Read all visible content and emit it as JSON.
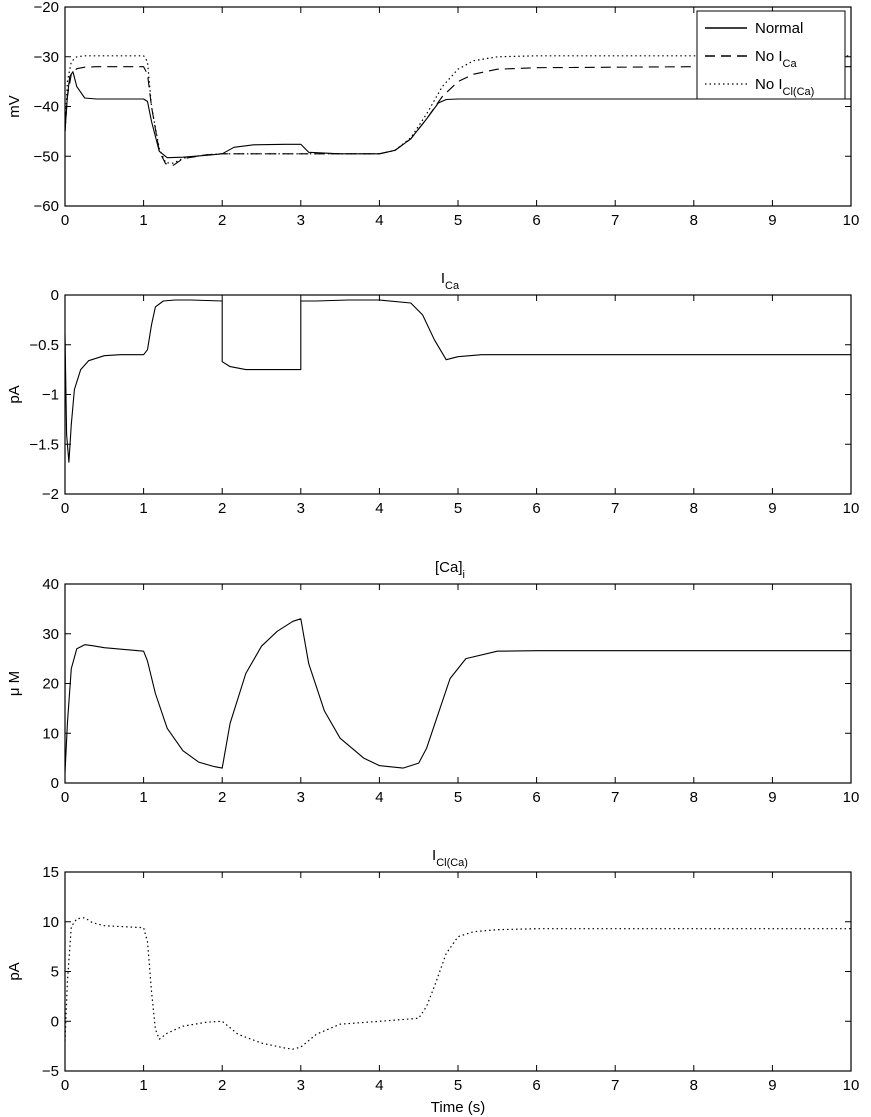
{
  "chart_data": [
    {
      "type": "line",
      "title": "",
      "xlabel": "",
      "ylabel": "mV",
      "xlim": [
        0,
        10
      ],
      "ylim": [
        -60,
        -20
      ],
      "xticks": [
        0,
        1,
        2,
        3,
        4,
        5,
        6,
        7,
        8,
        9,
        10
      ],
      "yticks": [
        -60,
        -50,
        -40,
        -30,
        -20
      ],
      "grid": false,
      "legend_position": "top-right",
      "series": [
        {
          "name": "Normal",
          "style": "solid",
          "x": [
            0,
            0.03,
            0.06,
            0.1,
            0.15,
            0.25,
            0.4,
            1.0,
            1.05,
            1.1,
            1.2,
            1.3,
            1.5,
            1.8,
            2.0,
            2.15,
            2.4,
            2.8,
            3.0,
            3.1,
            3.5,
            4.0,
            4.2,
            4.4,
            4.6,
            4.75,
            4.85,
            5.0,
            6.0,
            7.0,
            8.0,
            9.0,
            10.0
          ],
          "y": [
            -45,
            -38,
            -34,
            -33,
            -36,
            -38.3,
            -38.5,
            -38.5,
            -39,
            -43,
            -49,
            -50.3,
            -50.2,
            -49.8,
            -49.5,
            -48.2,
            -47.7,
            -47.6,
            -47.6,
            -49.2,
            -49.5,
            -49.5,
            -48.8,
            -46.5,
            -42.5,
            -39.3,
            -38.6,
            -38.5,
            -38.5,
            -38.5,
            -38.5,
            -38.5,
            -38.5
          ]
        },
        {
          "name": "No I",
          "name_sub": "Ca",
          "style": "dashed",
          "x": [
            0,
            0.03,
            0.08,
            0.15,
            0.25,
            0.4,
            1.0,
            1.05,
            1.1,
            1.2,
            1.28,
            1.38,
            1.5,
            1.8,
            2.0,
            2.5,
            3.0,
            3.5,
            4.0,
            4.2,
            4.4,
            4.6,
            4.8,
            5.0,
            5.2,
            5.5,
            6.0,
            7.0,
            8.0,
            9.0,
            10.0
          ],
          "y": [
            -45,
            -38,
            -33.5,
            -32.4,
            -32.1,
            -32,
            -32,
            -33.5,
            -40,
            -49,
            -51.5,
            -51.8,
            -50.5,
            -49.7,
            -49.5,
            -49.5,
            -49.5,
            -49.5,
            -49.5,
            -48.8,
            -46.5,
            -42.5,
            -38,
            -35,
            -33.5,
            -32.5,
            -32.2,
            -32.1,
            -32,
            -32,
            -32
          ]
        },
        {
          "name": "No I",
          "name_sub": "Cl(Ca)",
          "style": "dotted",
          "x": [
            0,
            0.03,
            0.08,
            0.15,
            0.25,
            0.4,
            1.0,
            1.05,
            1.1,
            1.2,
            1.28,
            1.38,
            1.5,
            1.8,
            2.0,
            2.5,
            3.0,
            3.5,
            4.0,
            4.2,
            4.4,
            4.6,
            4.8,
            5.0,
            5.2,
            5.5,
            6.0,
            7.0,
            8.0,
            9.0,
            10.0
          ],
          "y": [
            -45,
            -35,
            -31,
            -30,
            -29.8,
            -29.8,
            -29.8,
            -31,
            -40,
            -48.5,
            -51.3,
            -51.4,
            -50.4,
            -49.7,
            -49.5,
            -49.5,
            -49.5,
            -49.5,
            -49.5,
            -48.8,
            -46.3,
            -41.5,
            -36,
            -32.5,
            -30.8,
            -30,
            -29.8,
            -29.8,
            -29.8,
            -29.8,
            -29.8
          ]
        }
      ]
    },
    {
      "type": "line",
      "title": "I",
      "title_sub": "Ca",
      "xlabel": "",
      "ylabel": "pA",
      "xlim": [
        0,
        10
      ],
      "ylim": [
        -2,
        0
      ],
      "xticks": [
        0,
        1,
        2,
        3,
        4,
        5,
        6,
        7,
        8,
        9,
        10
      ],
      "yticks": [
        -2,
        -1.5,
        -1,
        -0.5,
        0
      ],
      "ytick_labels": [
        "-2",
        "-1.5",
        "-1",
        "-0.5",
        "0"
      ],
      "grid": false,
      "series": [
        {
          "name": "",
          "style": "solid",
          "x": [
            0,
            0.02,
            0.05,
            0.08,
            0.12,
            0.2,
            0.3,
            0.5,
            0.7,
            1.0,
            1.05,
            1.1,
            1.15,
            1.25,
            1.4,
            1.6,
            2.0,
            2.0,
            2.1,
            2.3,
            2.6,
            3.0,
            3.0,
            3.2,
            3.6,
            4.0,
            4.4,
            4.55,
            4.7,
            4.85,
            5.0,
            5.3,
            6.0,
            7.0,
            8.0,
            9.0,
            10.0
          ],
          "y": [
            -0.4,
            -1.4,
            -1.68,
            -1.3,
            -0.95,
            -0.75,
            -0.66,
            -0.61,
            -0.6,
            -0.6,
            -0.55,
            -0.3,
            -0.12,
            -0.06,
            -0.05,
            -0.05,
            -0.06,
            -0.67,
            -0.72,
            -0.75,
            -0.75,
            -0.75,
            -0.06,
            -0.06,
            -0.05,
            -0.05,
            -0.08,
            -0.2,
            -0.45,
            -0.65,
            -0.62,
            -0.6,
            -0.6,
            -0.6,
            -0.6,
            -0.6,
            -0.6
          ]
        }
      ]
    },
    {
      "type": "line",
      "title": "[Ca]",
      "title_sub": "i",
      "xlabel": "",
      "ylabel": "μ M",
      "xlim": [
        0,
        10
      ],
      "ylim": [
        0,
        40
      ],
      "xticks": [
        0,
        1,
        2,
        3,
        4,
        5,
        6,
        7,
        8,
        9,
        10
      ],
      "yticks": [
        0,
        10,
        20,
        30,
        40
      ],
      "grid": false,
      "series": [
        {
          "name": "",
          "style": "solid",
          "x": [
            0,
            0.03,
            0.08,
            0.15,
            0.25,
            0.35,
            0.5,
            1.0,
            1.05,
            1.15,
            1.3,
            1.5,
            1.7,
            1.9,
            2.0,
            2.0,
            2.1,
            2.3,
            2.5,
            2.7,
            2.9,
            3.0,
            3.1,
            3.3,
            3.5,
            3.8,
            4.0,
            4.3,
            4.5,
            4.6,
            4.75,
            4.9,
            5.1,
            5.5,
            6.0,
            7.0,
            8.0,
            9.0,
            10.0
          ],
          "y": [
            2,
            12,
            23,
            27,
            27.8,
            27.6,
            27.2,
            26.5,
            24.5,
            18,
            11,
            6.5,
            4.2,
            3.3,
            3,
            3,
            12,
            22,
            27.5,
            30.5,
            32.5,
            33,
            24,
            14.5,
            9,
            5,
            3.5,
            3,
            4,
            7,
            14,
            21,
            25,
            26.5,
            26.6,
            26.6,
            26.6,
            26.6,
            26.6
          ]
        }
      ]
    },
    {
      "type": "line",
      "title": "I",
      "title_sub": "Cl(Ca)",
      "xlabel": "Time (s)",
      "ylabel": "pA",
      "xlim": [
        0,
        10
      ],
      "ylim": [
        -5,
        15
      ],
      "xticks": [
        0,
        1,
        2,
        3,
        4,
        5,
        6,
        7,
        8,
        9,
        10
      ],
      "yticks": [
        -5,
        0,
        5,
        10,
        15
      ],
      "grid": false,
      "series": [
        {
          "name": "",
          "style": "dotted",
          "x": [
            0,
            0.03,
            0.08,
            0.15,
            0.25,
            0.35,
            0.5,
            1.0,
            1.05,
            1.1,
            1.15,
            1.2,
            1.3,
            1.5,
            1.8,
            2.0,
            2.2,
            2.5,
            2.8,
            2.9,
            3.0,
            3.2,
            3.5,
            4.0,
            4.5,
            4.6,
            4.7,
            4.85,
            5.0,
            5.2,
            5.5,
            6.0,
            7.0,
            8.0,
            9.0,
            10.0
          ],
          "y": [
            -2,
            4,
            9.5,
            10.3,
            10.4,
            9.9,
            9.6,
            9.4,
            8,
            3,
            -0.8,
            -1.8,
            -1.2,
            -0.5,
            -0.1,
            0,
            -1.3,
            -2.2,
            -2.7,
            -2.8,
            -2.6,
            -1.3,
            -0.3,
            0,
            0.3,
            1.5,
            3.5,
            6.8,
            8.5,
            9,
            9.2,
            9.3,
            9.3,
            9.3,
            9.3,
            9.3
          ]
        }
      ]
    }
  ]
}
